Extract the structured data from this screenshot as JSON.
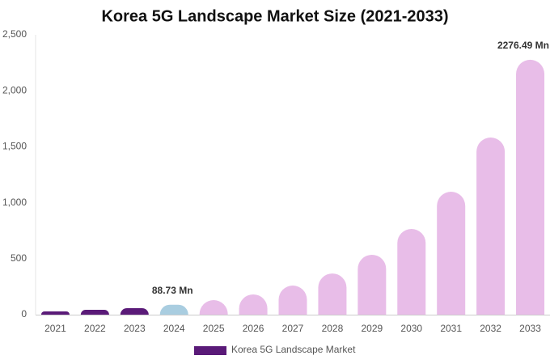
{
  "chart_data": {
    "type": "bar",
    "title": "Korea 5G Landscape Market Size (2021-2033)",
    "categories": [
      "2021",
      "2022",
      "2023",
      "2024",
      "2025",
      "2026",
      "2027",
      "2028",
      "2029",
      "2030",
      "2031",
      "2032",
      "2033"
    ],
    "series": [
      {
        "name": "Korea 5G Landscape Market",
        "color": "#5a1a78",
        "colors": [
          "#5a1a78",
          "#5a1a78",
          "#5a1a78",
          "#a9cde0",
          "#e8bde8",
          "#e8bde8",
          "#e8bde8",
          "#e8bde8",
          "#e8bde8",
          "#e8bde8",
          "#e8bde8",
          "#e8bde8",
          "#e8bde8"
        ],
        "values": [
          29,
          43,
          58,
          88.73,
          130,
          181,
          260,
          368,
          535,
          766,
          1098,
          1582,
          2276.49
        ],
        "value_labels": [
          null,
          null,
          null,
          "88.73 Mn",
          null,
          null,
          null,
          null,
          null,
          null,
          null,
          null,
          "2276.49 Mn"
        ]
      }
    ],
    "ylim": [
      0,
      2500
    ],
    "yticks": [
      0,
      500,
      {
        "value": 1000,
        "label": "1,000"
      },
      {
        "value": 1500,
        "label": "1,500"
      },
      {
        "value": 2000,
        "label": "2,000"
      },
      {
        "value": 2500,
        "label": "2,500"
      }
    ],
    "grid": false
  }
}
